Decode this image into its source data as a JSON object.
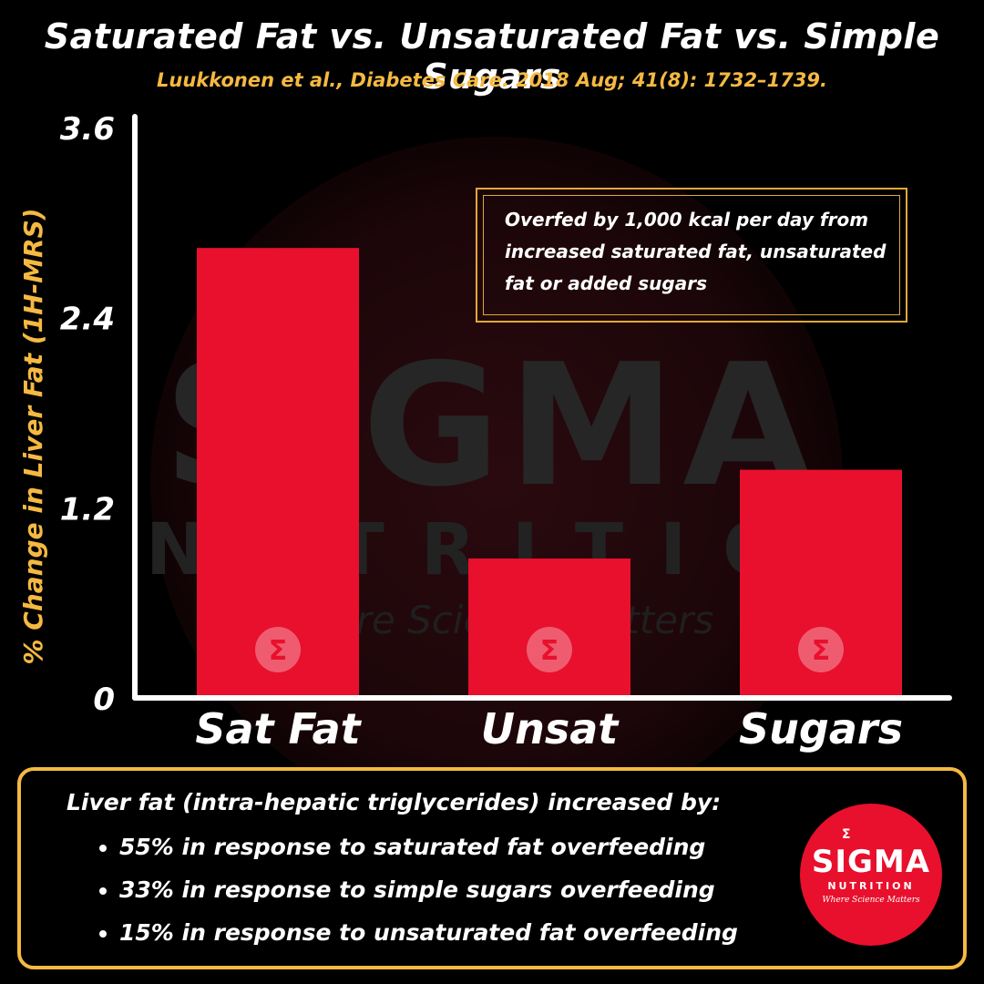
{
  "watermark": {
    "name": "SIGMA",
    "sub": "NUTRITION",
    "tagline": "Where Science Matters"
  },
  "chart_data": {
    "type": "bar",
    "title": "Saturated Fat vs. Unsaturated Fat vs. Simple Sugars",
    "subtitle": "Luukkonen et al., Diabetes Care. 2018 Aug; 41(8): 1732–1739.",
    "ylabel": "% Change in Liver Fat (1H-MRS)",
    "xlabel": "",
    "categories": [
      "Sat Fat",
      "Unsat",
      "Sugars"
    ],
    "values": [
      2.84,
      0.88,
      1.44
    ],
    "ylim": [
      0,
      3.6
    ],
    "yticks": [
      "0",
      "1.2",
      "2.4",
      "3.6"
    ],
    "ytick_values": [
      0,
      1.2,
      2.4,
      3.6
    ],
    "bar_color": "#e8102d",
    "bar_icon": "sigma-icon",
    "grid": false,
    "annotation": "Overfed by 1,000 kcal per day from increased saturated fat, unsaturated fat or added sugars"
  },
  "summary": {
    "heading": "Liver fat (intra-hepatic triglycerides) increased by:",
    "items": [
      "55% in response to saturated fat overfeeding",
      "33% in response to simple sugars overfeeding",
      "15% in response to unsaturated fat overfeeding"
    ]
  },
  "logo": {
    "name": "SIGMA",
    "sub": "NUTRITION",
    "tagline": "Where Science Matters",
    "color": "#e8102d"
  },
  "colors": {
    "background": "#000000",
    "accent": "#f5b942",
    "bar": "#e8102d"
  }
}
